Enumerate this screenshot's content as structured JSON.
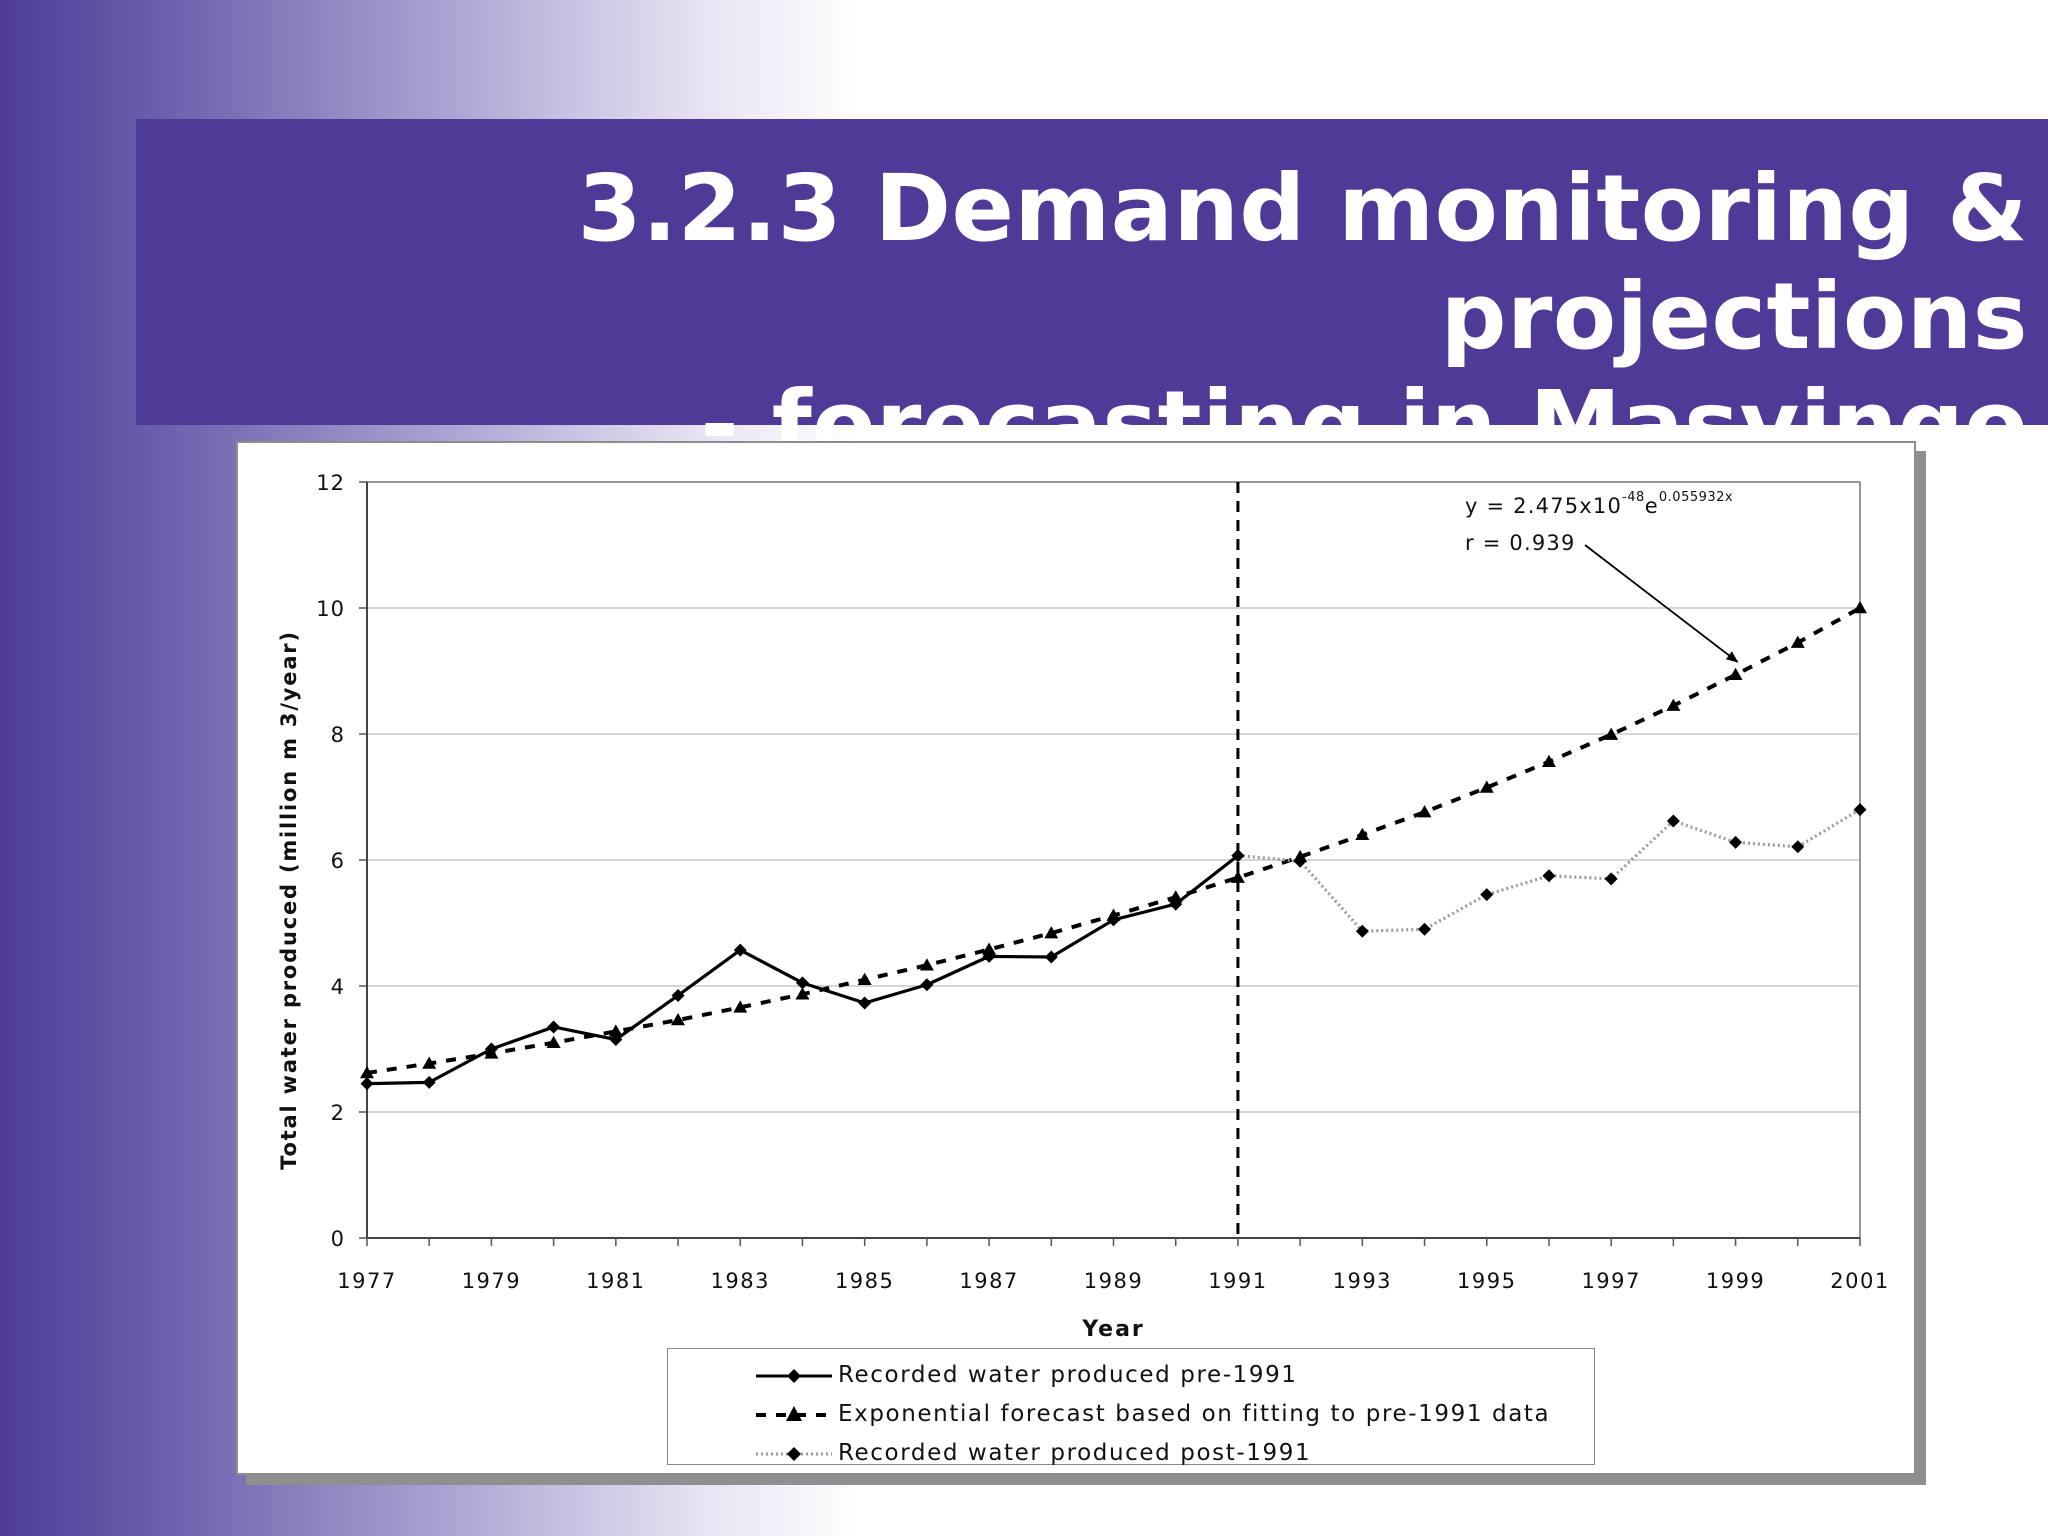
{
  "slide": {
    "title_line1": "3.2.3 Demand monitoring & projections",
    "title_line2": "- forecasting in Masvingo"
  },
  "colors": {
    "band": "#4f3a98",
    "recorded_pre": "#000000",
    "forecast": "#000000",
    "recorded_post": "#9a9a9a"
  },
  "chart_data": {
    "type": "line",
    "xlabel": "Year",
    "ylabel": "Total water produced (million m 3/year)",
    "ylim": [
      0,
      12
    ],
    "xlim": [
      1977,
      2001
    ],
    "yticks": [
      0,
      2,
      4,
      6,
      8,
      10,
      12
    ],
    "xticks": [
      1977,
      1979,
      1981,
      1983,
      1985,
      1987,
      1989,
      1991,
      1993,
      1995,
      1997,
      1999,
      2001
    ],
    "grid": "horizontal",
    "divider_year": 1991,
    "series": [
      {
        "name": "Recorded water produced pre-1991",
        "style": "solid-diamond",
        "points": [
          [
            1977,
            2.45
          ],
          [
            1978,
            2.47
          ],
          [
            1979,
            3.0
          ],
          [
            1980,
            3.35
          ],
          [
            1981,
            3.15
          ],
          [
            1982,
            3.85
          ],
          [
            1983,
            4.57
          ],
          [
            1984,
            4.05
          ],
          [
            1985,
            3.73
          ],
          [
            1986,
            4.02
          ],
          [
            1987,
            4.47
          ],
          [
            1988,
            4.46
          ],
          [
            1989,
            5.05
          ],
          [
            1990,
            5.3
          ],
          [
            1991,
            6.07
          ]
        ]
      },
      {
        "name": "Exponential forecast  based on fitting to pre-1991 data",
        "style": "dashed-triangle",
        "points": [
          [
            1977,
            2.62
          ],
          [
            1978,
            2.77
          ],
          [
            1979,
            2.93
          ],
          [
            1980,
            3.1
          ],
          [
            1981,
            3.28
          ],
          [
            1982,
            3.46
          ],
          [
            1983,
            3.66
          ],
          [
            1984,
            3.87
          ],
          [
            1985,
            4.1
          ],
          [
            1986,
            4.33
          ],
          [
            1987,
            4.58
          ],
          [
            1988,
            4.84
          ],
          [
            1989,
            5.12
          ],
          [
            1990,
            5.41
          ],
          [
            1991,
            5.72
          ],
          [
            1992,
            6.05
          ],
          [
            1993,
            6.4
          ],
          [
            1994,
            6.76
          ],
          [
            1995,
            7.15
          ],
          [
            1996,
            7.56
          ],
          [
            1997,
            7.99
          ],
          [
            1998,
            8.45
          ],
          [
            1999,
            8.94
          ],
          [
            2000,
            9.45
          ],
          [
            2001,
            10.0
          ]
        ]
      },
      {
        "name": "Recorded water produced post-1991",
        "style": "dotted-diamond",
        "points": [
          [
            1991,
            6.07
          ],
          [
            1992,
            5.98
          ],
          [
            1993,
            4.87
          ],
          [
            1994,
            4.9
          ],
          [
            1995,
            5.45
          ],
          [
            1996,
            5.75
          ],
          [
            1997,
            5.7
          ],
          [
            1998,
            6.62
          ],
          [
            1999,
            6.28
          ],
          [
            2000,
            6.21
          ],
          [
            2001,
            6.8
          ]
        ]
      }
    ],
    "annotation": {
      "eq_prefix": "y = 2.475x10",
      "eq_exp1": "-48",
      "eq_mid": "e",
      "eq_exp2": "0.055932x",
      "r_text": "r = 0.939",
      "points_to": [
        1999,
        9.08
      ]
    }
  }
}
